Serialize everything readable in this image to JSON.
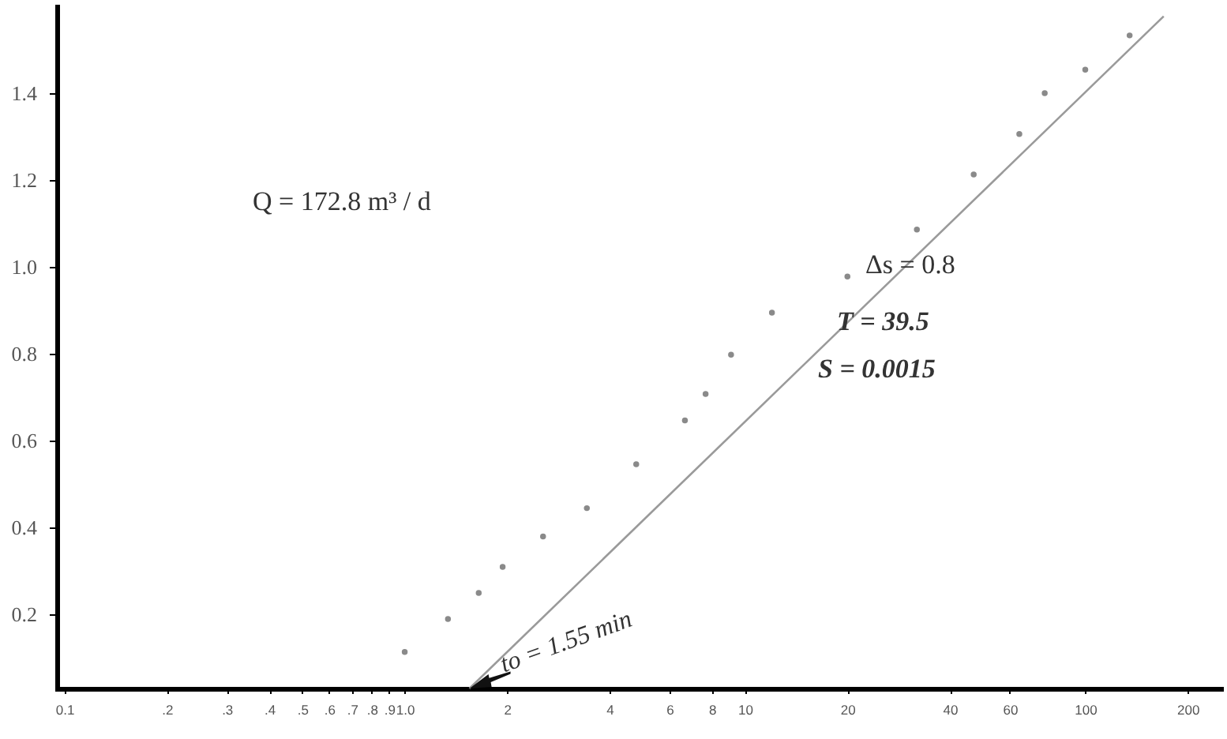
{
  "chart_data": {
    "type": "scatter",
    "annotations": [
      "Q = 172.8 m³ / d",
      "Δs = 0.8",
      "T = 39.5",
      "S = 0.0015",
      {
        "text": "to = 1.55 min",
        "x": 1.55,
        "y": 0.03
      }
    ],
    "series": [
      {
        "color": "#8a8a8a",
        "marker": "circle",
        "x": [
          1.0,
          1.34,
          1.65,
          1.94,
          2.55,
          3.43,
          4.79,
          6.66,
          7.66,
          9.1,
          12.0,
          20,
          32,
          47,
          64,
          76,
          100,
          135
        ],
        "values": [
          0.114,
          0.19,
          0.25,
          0.31,
          0.38,
          0.445,
          0.546,
          0.647,
          0.708,
          0.798,
          0.895,
          0.978,
          1.086,
          1.213,
          1.306,
          1.4,
          1.454,
          1.533
        ]
      },
      {
        "type": "line",
        "color": "#9a9a9a",
        "line_style": "solid",
        "x": [
          1.55,
          170
        ],
        "values": [
          0.03,
          1.577
        ]
      }
    ],
    "log": "x",
    "xlim": [
      0.095,
      250
    ],
    "xticks": [
      0.1,
      {
        "value": 0.2,
        "label": ".2"
      },
      {
        "value": 0.3,
        "label": ".3"
      },
      {
        "value": 0.4,
        "label": ".4"
      },
      {
        "value": 0.5,
        "label": ".5"
      },
      {
        "value": 0.6,
        "label": ".6"
      },
      {
        "value": 0.7,
        "label": ".7"
      },
      {
        "value": 0.8,
        "label": ".8"
      },
      {
        "value": 0.9,
        "label": ".9"
      },
      {
        "value": 1,
        "label": "1.0"
      },
      2,
      4,
      6,
      8,
      10,
      20,
      40,
      60,
      100,
      200
    ],
    "ylim": [
      0.03,
      1.6
    ],
    "yticks": [
      {
        "value": 0.2,
        "label": "0.2"
      },
      {
        "value": 0.4,
        "label": "0.4"
      },
      {
        "value": 0.6,
        "label": "0.6"
      },
      {
        "value": 0.8,
        "label": "0.8"
      },
      {
        "value": 1.0,
        "label": "1.0"
      },
      {
        "value": 1.2,
        "label": "1.2"
      },
      {
        "value": 1.4,
        "label": "1.4"
      }
    ],
    "grid": false
  }
}
